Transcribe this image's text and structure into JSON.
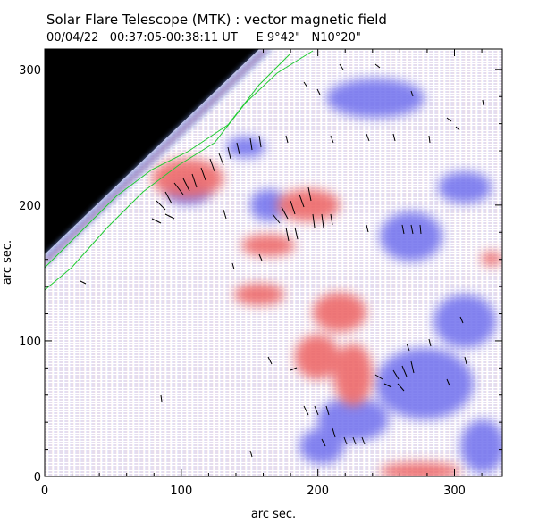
{
  "header": {
    "title": "Solar Flare Telescope (MTK) : vector magnetic field",
    "subtitle": "00/04/22   00:37:05-00:38:11 UT     E 9°42\"   N10°20\""
  },
  "axes": {
    "xlabel": "arc sec.",
    "ylabel": "arc sec.",
    "xlim": [
      0,
      335
    ],
    "ylim": [
      0,
      315
    ],
    "xticks": [
      "0",
      "100",
      "200",
      "300"
    ],
    "yticks": [
      "0",
      "100",
      "200",
      "300"
    ]
  },
  "colors": {
    "positive_polarity": "#f07070",
    "negative_polarity": "#6f6ff0",
    "limb_contour": "#22cc33",
    "off_disk": "#000000",
    "vectors": "#000000"
  }
}
